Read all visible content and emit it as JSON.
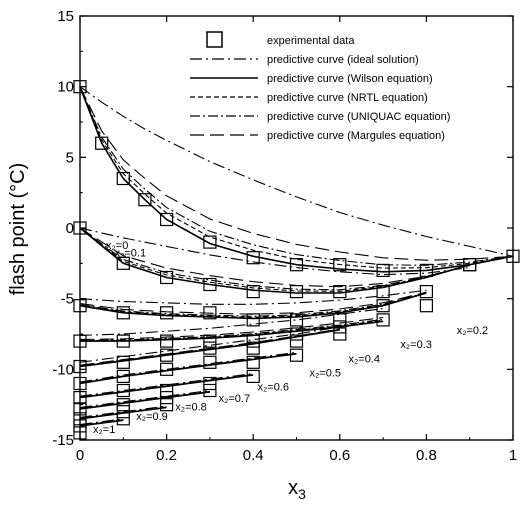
{
  "chart_data": {
    "type": "line",
    "xlabel": "x3",
    "xlabel_base": "x",
    "xlabel_sub": "3",
    "ylabel": "flash point (°C)",
    "xlim": [
      0,
      1
    ],
    "ylim": [
      -15,
      15
    ],
    "xticks": [
      0,
      0.2,
      0.4,
      0.6,
      0.8,
      1
    ],
    "xtick_labels": [
      "0",
      "0.2",
      "0.4",
      "0.6",
      "0.8",
      "1"
    ],
    "yticks": [
      -15,
      -10,
      -5,
      0,
      5,
      10,
      15
    ],
    "ytick_labels": [
      "-15",
      "-10",
      "-5",
      "0",
      "5",
      "10",
      "15"
    ],
    "grid": false,
    "legend_position": "top-right",
    "legend": [
      {
        "label": "experimental data",
        "style": "square"
      },
      {
        "label": "predictive curve (ideal solution)",
        "style": "ideal"
      },
      {
        "label": "predictive curve (Wilson equation)",
        "style": "wilson"
      },
      {
        "label": "predictive curve (NRTL equation)",
        "style": "nrtl"
      },
      {
        "label": "predictive curve (UNIQUAC equation)",
        "style": "uniquac"
      },
      {
        "label": "predictive curve (Margules equation)",
        "style": "margules"
      }
    ],
    "series": [
      {
        "x2": 0,
        "label": "x₂=0",
        "label_at": [
          0.06,
          -1.5
        ],
        "x": [
          0,
          0.05,
          0.1,
          0.15,
          0.2,
          0.3,
          0.4,
          0.5,
          0.6,
          0.7,
          0.8,
          0.9,
          1.0
        ],
        "wilson": [
          10,
          6.0,
          3.5,
          2.0,
          0.6,
          -1.1,
          -2.0,
          -2.6,
          -2.9,
          -3.1,
          -3.0,
          -2.6,
          -2.0
        ],
        "ideal": [
          10,
          8.9,
          7.9,
          7.0,
          6.2,
          4.7,
          3.4,
          2.2,
          1.1,
          0.2,
          -0.6,
          -1.3,
          -2.0
        ],
        "exp_x": [
          0,
          0.05,
          0.1,
          0.15,
          0.2,
          0.3,
          0.4,
          0.5,
          0.6,
          0.7,
          0.8,
          0.9,
          1.0
        ],
        "exp_y": [
          10,
          6.0,
          3.5,
          2.0,
          0.6,
          -1.0,
          -2.1,
          -2.6,
          -2.6,
          -3.0,
          -3.0,
          -2.6,
          -2.0
        ]
      },
      {
        "x2": 0.1,
        "label": "x₂=0.1",
        "label_at": [
          0.08,
          -2.0
        ],
        "x": [
          0,
          0.1,
          0.2,
          0.3,
          0.4,
          0.5,
          0.6,
          0.7,
          0.8,
          0.9
        ],
        "wilson": [
          0,
          -2.5,
          -3.5,
          -4.0,
          -4.4,
          -4.6,
          -4.6,
          -4.2,
          -3.5,
          -2.6
        ],
        "ideal": [
          0,
          -0.7,
          -1.3,
          -1.9,
          -2.4,
          -2.8,
          -3.1,
          -3.3,
          -3.2,
          -2.8
        ],
        "exp_x": [
          0,
          0.1,
          0.2,
          0.3,
          0.4,
          0.5,
          0.6,
          0.7,
          0.8,
          0.9
        ],
        "exp_y": [
          0,
          -2.5,
          -3.5,
          -4.0,
          -4.5,
          -4.5,
          -4.5,
          -4.5,
          -4.5,
          -2.6
        ]
      },
      {
        "x2": 0.2,
        "label": "x₂=0.2",
        "label_at": [
          0.87,
          -7.5
        ],
        "x": [
          0,
          0.1,
          0.2,
          0.3,
          0.4,
          0.5,
          0.6,
          0.7,
          0.8
        ],
        "wilson": [
          -5.5,
          -6.0,
          -6.2,
          -6.3,
          -6.4,
          -6.3,
          -6.0,
          -5.5,
          -4.6
        ],
        "ideal": [
          -5.0,
          -5.2,
          -5.3,
          -5.4,
          -5.4,
          -5.3,
          -5.1,
          -4.8,
          -4.4
        ],
        "exp_x": [
          0,
          0.1,
          0.2,
          0.3,
          0.4,
          0.5,
          0.6,
          0.7,
          0.8
        ],
        "exp_y": [
          -5.5,
          -6.0,
          -6.0,
          -6.0,
          -6.5,
          -6.5,
          -6.5,
          -5.5,
          -5.5
        ]
      },
      {
        "x2": 0.3,
        "label": "x₂=0.3",
        "label_at": [
          0.74,
          -8.5
        ],
        "x": [
          0,
          0.1,
          0.2,
          0.3,
          0.4,
          0.5,
          0.6,
          0.7
        ],
        "wilson": [
          -8.0,
          -8.0,
          -7.9,
          -7.8,
          -7.6,
          -7.3,
          -7.0,
          -6.6
        ],
        "ideal": [
          -7.6,
          -7.5,
          -7.3,
          -7.1,
          -6.8,
          -6.5,
          -6.1,
          -5.7
        ],
        "exp_x": [
          0,
          0.1,
          0.2,
          0.3,
          0.4,
          0.5,
          0.6,
          0.7
        ],
        "exp_y": [
          -8.0,
          -8.0,
          -8.0,
          -8.0,
          -8.0,
          -7.5,
          -7.0,
          -6.5
        ]
      },
      {
        "x2": 0.4,
        "label": "x₂=0.4",
        "label_at": [
          0.62,
          -9.5
        ],
        "x": [
          0,
          0.1,
          0.2,
          0.3,
          0.4,
          0.5,
          0.6
        ],
        "wilson": [
          -9.8,
          -9.4,
          -9.0,
          -8.6,
          -8.2,
          -7.7,
          -7.2
        ],
        "ideal": [
          -9.5,
          -9.1,
          -8.7,
          -8.3,
          -7.9,
          -7.5,
          -7.0
        ],
        "exp_x": [
          0,
          0.1,
          0.2,
          0.3,
          0.4,
          0.5,
          0.6
        ],
        "exp_y": [
          -9.8,
          -9.5,
          -9.0,
          -8.5,
          -8.5,
          -8.0,
          -7.5
        ]
      },
      {
        "x2": 0.5,
        "label": "x₂=0.5",
        "label_at": [
          0.53,
          -10.5
        ],
        "x": [
          0,
          0.1,
          0.2,
          0.3,
          0.4,
          0.5
        ],
        "wilson": [
          -11.0,
          -10.5,
          -10.1,
          -9.7,
          -9.3,
          -8.9
        ],
        "ideal": [
          -10.9,
          -10.4,
          -10.0,
          -9.6,
          -9.2,
          -8.8
        ],
        "exp_x": [
          0,
          0.1,
          0.2,
          0.3,
          0.4,
          0.5
        ],
        "exp_y": [
          -11.0,
          -10.5,
          -10.0,
          -9.5,
          -9.5,
          -9.0
        ]
      },
      {
        "x2": 0.6,
        "label": "x₂=0.6",
        "label_at": [
          0.41,
          -11.5
        ],
        "x": [
          0,
          0.1,
          0.2,
          0.3,
          0.4
        ],
        "wilson": [
          -12.0,
          -11.6,
          -11.2,
          -10.8,
          -10.4
        ],
        "ideal": [
          -11.9,
          -11.5,
          -11.1,
          -10.7,
          -10.3
        ],
        "exp_x": [
          0,
          0.1,
          0.2,
          0.3,
          0.4
        ],
        "exp_y": [
          -12.0,
          -11.5,
          -11.5,
          -11.0,
          -10.5
        ]
      },
      {
        "x2": 0.7,
        "label": "x₂=0.7",
        "label_at": [
          0.32,
          -12.3
        ],
        "x": [
          0,
          0.1,
          0.2,
          0.3
        ],
        "wilson": [
          -12.8,
          -12.4,
          -12.0,
          -11.6
        ],
        "ideal": [
          -12.7,
          -12.3,
          -11.9,
          -11.5
        ],
        "exp_x": [
          0,
          0.1,
          0.2,
          0.3
        ],
        "exp_y": [
          -12.8,
          -12.5,
          -12.0,
          -11.5
        ]
      },
      {
        "x2": 0.8,
        "label": "x₂=0.8",
        "label_at": [
          0.22,
          -12.9
        ],
        "x": [
          0,
          0.1,
          0.2
        ],
        "wilson": [
          -13.5,
          -13.1,
          -12.7
        ],
        "ideal": [
          -13.4,
          -13.0,
          -12.6
        ],
        "exp_x": [
          0,
          0.1,
          0.2
        ],
        "exp_y": [
          -13.5,
          -13.0,
          -12.5
        ]
      },
      {
        "x2": 0.9,
        "label": "x₂=0.9",
        "label_at": [
          0.13,
          -13.6
        ],
        "x": [
          0,
          0.1
        ],
        "wilson": [
          -14.0,
          -13.6
        ],
        "ideal": [
          -13.9,
          -13.5
        ],
        "exp_x": [
          0,
          0.1
        ],
        "exp_y": [
          -14.0,
          -13.5
        ]
      },
      {
        "x2": 1,
        "label": "x₂=1",
        "label_at": [
          0.03,
          -14.5
        ],
        "x": [
          0
        ],
        "wilson": [
          -14.5
        ],
        "ideal": [
          -14.5
        ],
        "exp_x": [
          0
        ],
        "exp_y": [
          -14.5
        ]
      }
    ]
  }
}
